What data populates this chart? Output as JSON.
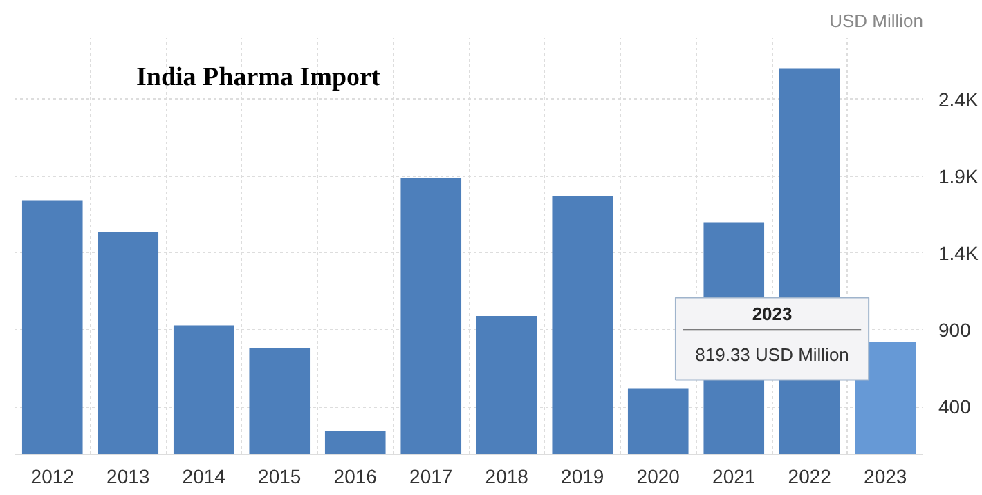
{
  "chart_data": {
    "type": "bar",
    "title": "India Pharma Import",
    "ylabel": "USD Million",
    "categories": [
      "2012",
      "2013",
      "2014",
      "2015",
      "2016",
      "2017",
      "2018",
      "2019",
      "2020",
      "2021",
      "2022",
      "2023"
    ],
    "values": [
      1740,
      1540,
      930,
      780,
      240,
      1890,
      990,
      1770,
      520,
      1600,
      2600,
      819.33
    ],
    "colors": [
      "#4d7fbb",
      "#4d7fbb",
      "#4d7fbb",
      "#4d7fbb",
      "#4d7fbb",
      "#4d7fbb",
      "#4d7fbb",
      "#4d7fbb",
      "#4d7fbb",
      "#4d7fbb",
      "#4d7fbb",
      "#6699d6"
    ],
    "ylim": [
      90,
      2800
    ],
    "yticks": [
      400,
      900,
      {
        "value": 1400,
        "label": "1.4K"
      },
      {
        "value": 1900,
        "label": "1.9K"
      },
      {
        "value": 2400,
        "label": "2.4K"
      }
    ],
    "grid": true,
    "annotations": [
      {
        "text": "819.33 USD Million",
        "x": "2023",
        "y": 819.33
      }
    ]
  }
}
